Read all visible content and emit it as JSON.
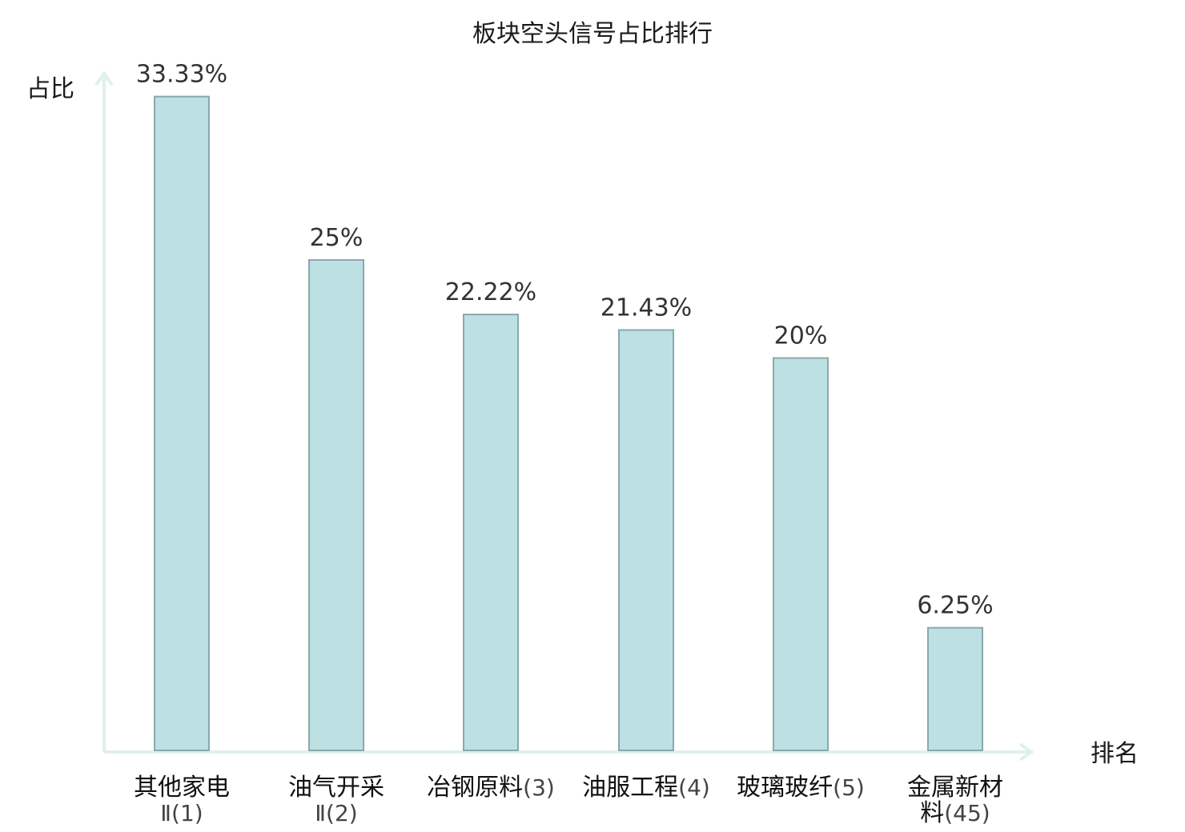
{
  "chart_data": {
    "type": "bar",
    "title": "板块空头信号占比排行",
    "ylabel": "占比",
    "xlabel": "排名",
    "ylim": [
      0,
      34.5
    ],
    "grid": false,
    "categories": [
      {
        "name": "其他家电",
        "rank": "Ⅱ(1)",
        "value": 33.33,
        "label": "33.33%",
        "highlight": false
      },
      {
        "name": "油气开采",
        "rank": "Ⅱ(2)",
        "value": 25,
        "label": "25%",
        "highlight": false
      },
      {
        "name": "冶钢原料",
        "rank": "(3)",
        "value": 22.22,
        "label": "22.22%",
        "highlight": false
      },
      {
        "name": "油服工程",
        "rank": "(4)",
        "value": 21.43,
        "label": "21.43%",
        "highlight": false
      },
      {
        "name": "玻璃玻纤",
        "rank": "(5)",
        "value": 20,
        "label": "20%",
        "highlight": false
      },
      {
        "name": "金属新材",
        "name2": "料",
        "rank": "(45)",
        "value": 6.25,
        "label": "6.25%",
        "highlight": true
      }
    ],
    "colors": {
      "bar_fill": "#bde0e3",
      "bar_stroke": "#8aa8ac",
      "axis": "#dff0ee",
      "highlight_text": "#e02020"
    }
  }
}
